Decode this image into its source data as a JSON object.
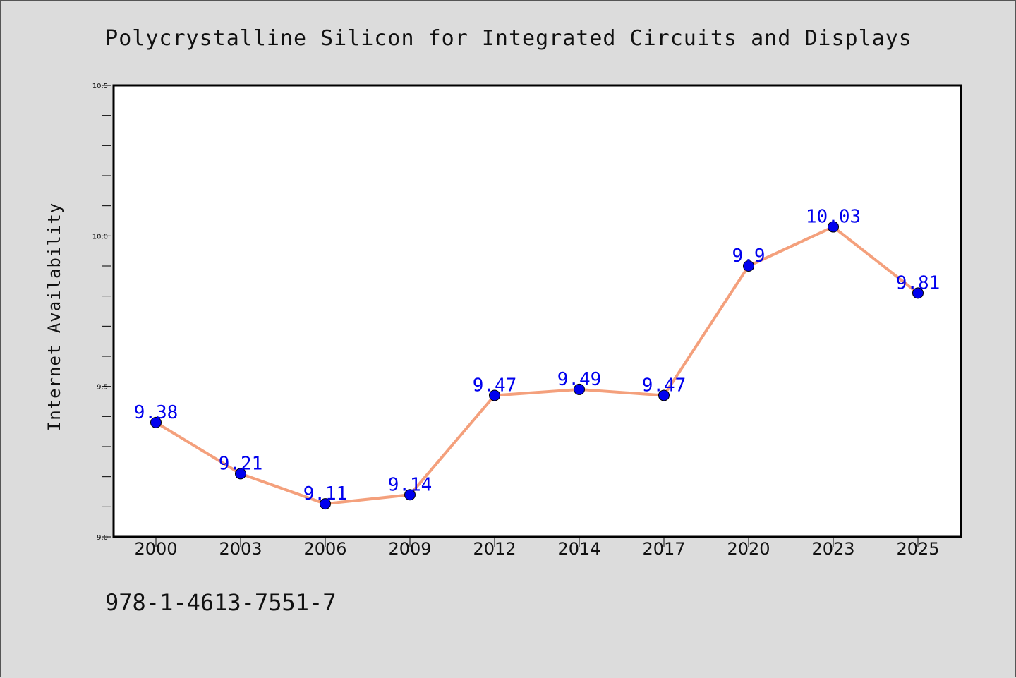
{
  "chart_data": {
    "type": "line",
    "title": "Polycrystalline Silicon for Integrated Circuits and Displays",
    "xlabel": "",
    "ylabel": "Internet Availability",
    "categories": [
      "2000",
      "2003",
      "2006",
      "2009",
      "2012",
      "2014",
      "2017",
      "2020",
      "2023",
      "2025"
    ],
    "series": [
      {
        "values": [
          9.38,
          9.21,
          9.11,
          9.14,
          9.47,
          9.49,
          9.47,
          9.9,
          10.03,
          9.81
        ]
      }
    ],
    "data_labels": [
      "9.38",
      "9.21",
      "9.11",
      "9.14",
      "9.47",
      "9.49",
      "9.47",
      "9.9",
      "10.03",
      "9.81"
    ],
    "ylim": [
      9.0,
      10.5
    ],
    "yticks": [
      "9.0",
      "9.5",
      "10.0",
      "10.5"
    ],
    "grid": false,
    "colors": {
      "line": "#f4a07c",
      "marker": "#0000ee",
      "label": "#0000ee",
      "background": "#dcdcdc",
      "plot_background": "#ffffff"
    }
  },
  "footer": {
    "isbn": "978-1-4613-7551-7"
  }
}
